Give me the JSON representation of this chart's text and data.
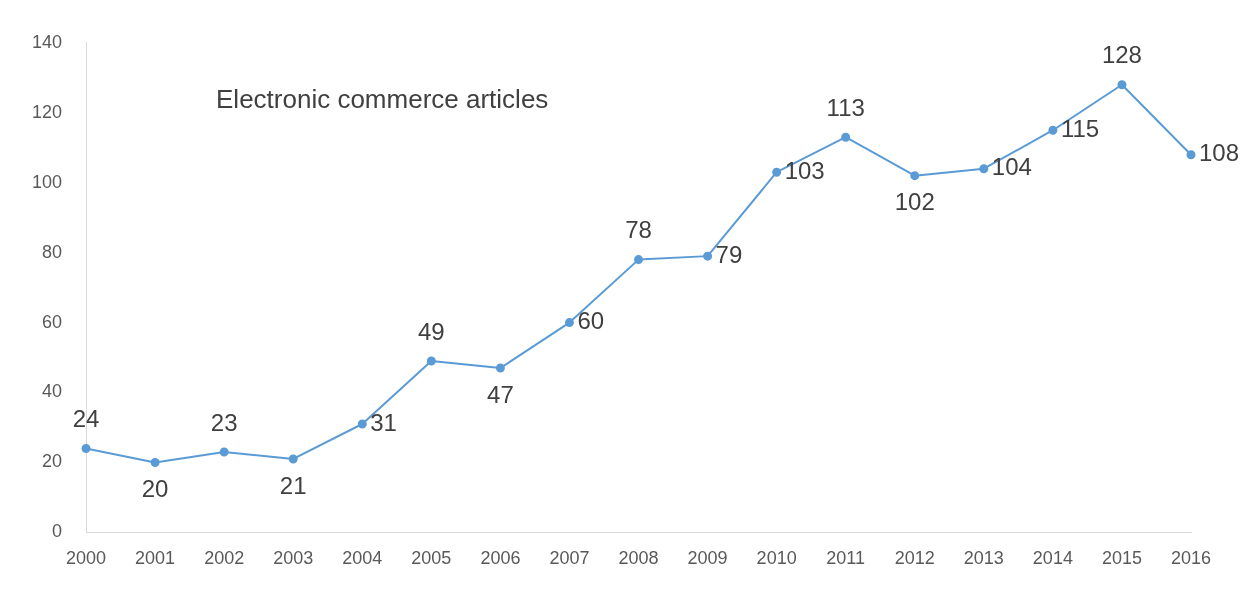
{
  "chart_data": {
    "type": "line",
    "title": "Electronic commerce articles",
    "categories": [
      "2000",
      "2001",
      "2002",
      "2003",
      "2004",
      "2005",
      "2006",
      "2007",
      "2008",
      "2009",
      "2010",
      "2011",
      "2012",
      "2013",
      "2014",
      "2015",
      "2016"
    ],
    "series": [
      {
        "color": "#5b9bd5",
        "values": [
          24,
          20,
          23,
          21,
          31,
          49,
          47,
          60,
          78,
          79,
          103,
          113,
          102,
          104,
          115,
          128,
          108
        ]
      }
    ],
    "ylim": [
      0,
      140
    ],
    "yticks": [
      0,
      20,
      40,
      60,
      80,
      100,
      120,
      140
    ],
    "grid": false,
    "legend": false,
    "marker": "circle",
    "line_style": "solid",
    "data_labels": true
  }
}
